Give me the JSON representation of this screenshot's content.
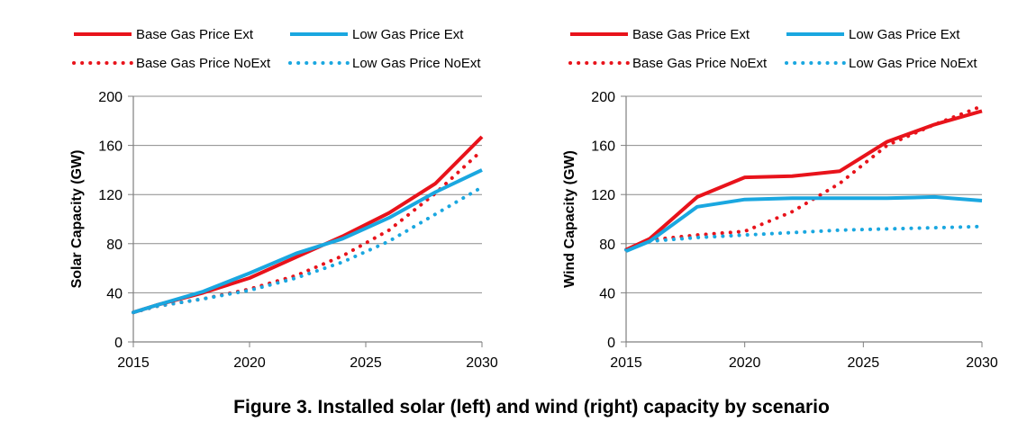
{
  "caption": "Figure 3. Installed solar (left) and wind (right) capacity by scenario",
  "colors": {
    "base": "#e8131b",
    "low": "#1aa7e0",
    "grid": "#8c8c8c",
    "axis": "#7f7f7f"
  },
  "chart_data": [
    {
      "type": "line",
      "title": "",
      "xlabel": "",
      "ylabel": "Solar Capacity (GW)",
      "xlim": [
        2015,
        2030
      ],
      "ylim": [
        0,
        200
      ],
      "xticks": [
        "2015",
        "2020",
        "2025",
        "2030"
      ],
      "yticks": [
        "0",
        "40",
        "80",
        "120",
        "160",
        "200"
      ],
      "grid": true,
      "legend": "top",
      "series": [
        {
          "name": "Base Gas Price Ext",
          "color": "#e8131b",
          "style": "solid",
          "x": [
            2015,
            2016,
            2018,
            2020,
            2022,
            2024,
            2026,
            2028,
            2030
          ],
          "y": [
            24,
            30,
            40,
            52,
            69,
            86,
            105,
            129,
            167
          ]
        },
        {
          "name": "Low Gas Price Ext",
          "color": "#1aa7e0",
          "style": "solid",
          "x": [
            2015,
            2016,
            2018,
            2020,
            2022,
            2024,
            2026,
            2028,
            2030
          ],
          "y": [
            24,
            30,
            41,
            56,
            72,
            84,
            101,
            122,
            140
          ]
        },
        {
          "name": "Base Gas Price NoExt",
          "color": "#e8131b",
          "style": "dotted",
          "x": [
            2015,
            2016,
            2018,
            2020,
            2022,
            2024,
            2026,
            2028,
            2030
          ],
          "y": [
            24,
            29,
            35,
            43,
            54,
            70,
            91,
            121,
            156
          ]
        },
        {
          "name": "Low Gas Price NoExt",
          "color": "#1aa7e0",
          "style": "dotted",
          "x": [
            2015,
            2016,
            2018,
            2020,
            2022,
            2024,
            2026,
            2028,
            2030
          ],
          "y": [
            24,
            29,
            35,
            42,
            52,
            65,
            82,
            104,
            126
          ]
        }
      ]
    },
    {
      "type": "line",
      "title": "",
      "xlabel": "",
      "ylabel": "Wind Capacity (GW)",
      "xlim": [
        2015,
        2030
      ],
      "ylim": [
        0,
        200
      ],
      "xticks": [
        "2015",
        "2020",
        "2025",
        "2030"
      ],
      "yticks": [
        "0",
        "40",
        "80",
        "120",
        "160",
        "200"
      ],
      "grid": true,
      "legend": "top",
      "series": [
        {
          "name": "Base Gas Price Ext",
          "color": "#e8131b",
          "style": "solid",
          "x": [
            2015,
            2016,
            2018,
            2020,
            2022,
            2024,
            2026,
            2028,
            2030
          ],
          "y": [
            75,
            84,
            118,
            134,
            135,
            139,
            163,
            177,
            188
          ]
        },
        {
          "name": "Low Gas Price Ext",
          "color": "#1aa7e0",
          "style": "solid",
          "x": [
            2015,
            2016,
            2018,
            2020,
            2022,
            2024,
            2026,
            2028,
            2030
          ],
          "y": [
            74,
            82,
            110,
            116,
            117,
            117,
            117,
            118,
            115
          ]
        },
        {
          "name": "Base Gas Price NoExt",
          "color": "#e8131b",
          "style": "dotted",
          "x": [
            2015,
            2016,
            2018,
            2020,
            2022,
            2024,
            2026,
            2028,
            2030
          ],
          "y": [
            75,
            83,
            87,
            90,
            106,
            129,
            160,
            177,
            192
          ]
        },
        {
          "name": "Low Gas Price NoExt",
          "color": "#1aa7e0",
          "style": "dotted",
          "x": [
            2015,
            2016,
            2018,
            2020,
            2022,
            2024,
            2026,
            2028,
            2030
          ],
          "y": [
            75,
            82,
            85,
            87,
            89,
            91,
            92,
            93,
            94
          ]
        }
      ]
    }
  ]
}
